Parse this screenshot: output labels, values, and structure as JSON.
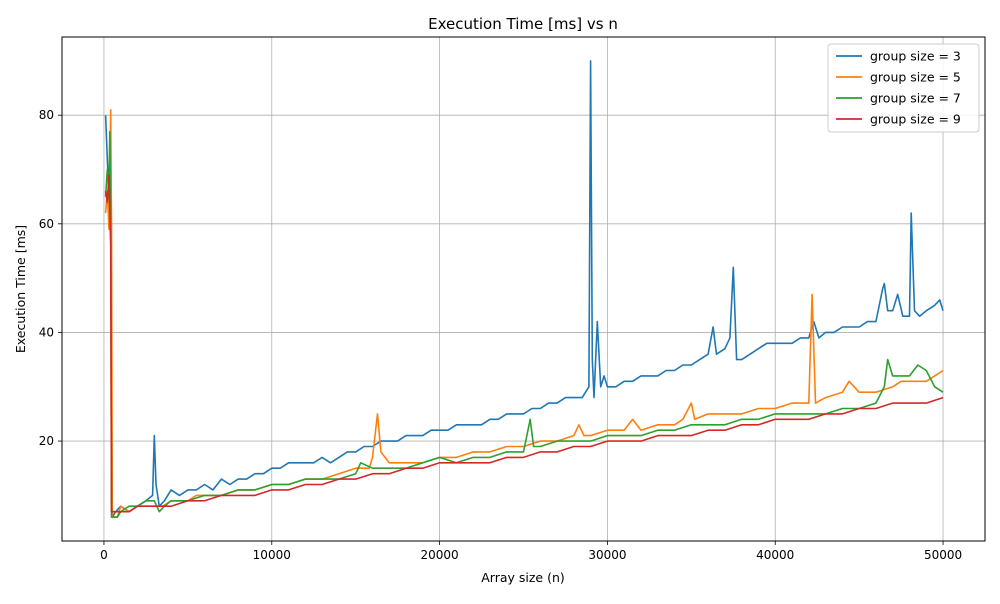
{
  "chart_data": {
    "type": "line",
    "title": "Execution Time [ms] vs n",
    "xlabel": "Array size (n)",
    "ylabel": "Execution Time [ms]",
    "xlim": [
      -2500,
      52500
    ],
    "ylim": [
      1.6,
      94.4
    ],
    "xticks": [
      0,
      10000,
      20000,
      30000,
      40000,
      50000
    ],
    "yticks": [
      20,
      40,
      60,
      80
    ],
    "grid": true,
    "legend_position": "top-right",
    "series": [
      {
        "name": "group size = 3",
        "color": "#1f77b4",
        "points": [
          [
            100,
            80
          ],
          [
            200,
            72
          ],
          [
            300,
            64
          ],
          [
            400,
            60
          ],
          [
            500,
            6
          ],
          [
            700,
            7
          ],
          [
            1000,
            8
          ],
          [
            1500,
            7
          ],
          [
            2000,
            8
          ],
          [
            2500,
            9
          ],
          [
            2900,
            10
          ],
          [
            3000,
            21
          ],
          [
            3100,
            12
          ],
          [
            3300,
            8
          ],
          [
            3600,
            9
          ],
          [
            4000,
            11
          ],
          [
            4500,
            10
          ],
          [
            5000,
            11
          ],
          [
            5500,
            11
          ],
          [
            6000,
            12
          ],
          [
            6500,
            11
          ],
          [
            7000,
            13
          ],
          [
            7500,
            12
          ],
          [
            8000,
            13
          ],
          [
            8500,
            13
          ],
          [
            9000,
            14
          ],
          [
            9500,
            14
          ],
          [
            10000,
            15
          ],
          [
            10500,
            15
          ],
          [
            11000,
            16
          ],
          [
            11500,
            16
          ],
          [
            12000,
            16
          ],
          [
            12500,
            16
          ],
          [
            13000,
            17
          ],
          [
            13500,
            16
          ],
          [
            14000,
            17
          ],
          [
            14500,
            18
          ],
          [
            15000,
            18
          ],
          [
            15500,
            19
          ],
          [
            16000,
            19
          ],
          [
            16500,
            20
          ],
          [
            17000,
            20
          ],
          [
            17500,
            20
          ],
          [
            18000,
            21
          ],
          [
            18500,
            21
          ],
          [
            19000,
            21
          ],
          [
            19500,
            22
          ],
          [
            20000,
            22
          ],
          [
            20500,
            22
          ],
          [
            21000,
            23
          ],
          [
            21500,
            23
          ],
          [
            22000,
            23
          ],
          [
            22500,
            23
          ],
          [
            23000,
            24
          ],
          [
            23500,
            24
          ],
          [
            24000,
            25
          ],
          [
            24500,
            25
          ],
          [
            25000,
            25
          ],
          [
            25500,
            26
          ],
          [
            26000,
            26
          ],
          [
            26500,
            27
          ],
          [
            27000,
            27
          ],
          [
            27500,
            28
          ],
          [
            28000,
            28
          ],
          [
            28500,
            28
          ],
          [
            28900,
            30
          ],
          [
            29000,
            90
          ],
          [
            29100,
            35
          ],
          [
            29200,
            28
          ],
          [
            29400,
            42
          ],
          [
            29600,
            30
          ],
          [
            29800,
            32
          ],
          [
            30000,
            30
          ],
          [
            30500,
            30
          ],
          [
            31000,
            31
          ],
          [
            31500,
            31
          ],
          [
            32000,
            32
          ],
          [
            32500,
            32
          ],
          [
            33000,
            32
          ],
          [
            33500,
            33
          ],
          [
            34000,
            33
          ],
          [
            34500,
            34
          ],
          [
            35000,
            34
          ],
          [
            35500,
            35
          ],
          [
            36000,
            36
          ],
          [
            36300,
            41
          ],
          [
            36500,
            36
          ],
          [
            37000,
            37
          ],
          [
            37300,
            39
          ],
          [
            37500,
            52
          ],
          [
            37700,
            35
          ],
          [
            38000,
            35
          ],
          [
            38500,
            36
          ],
          [
            39000,
            37
          ],
          [
            39500,
            38
          ],
          [
            40000,
            38
          ],
          [
            40500,
            38
          ],
          [
            41000,
            38
          ],
          [
            41500,
            39
          ],
          [
            42000,
            39
          ],
          [
            42300,
            42
          ],
          [
            42600,
            39
          ],
          [
            43000,
            40
          ],
          [
            43500,
            40
          ],
          [
            44000,
            41
          ],
          [
            44500,
            41
          ],
          [
            45000,
            41
          ],
          [
            45500,
            42
          ],
          [
            46000,
            42
          ],
          [
            46400,
            48
          ],
          [
            46500,
            49
          ],
          [
            46700,
            44
          ],
          [
            47000,
            44
          ],
          [
            47300,
            47
          ],
          [
            47600,
            43
          ],
          [
            48000,
            43
          ],
          [
            48100,
            62
          ],
          [
            48300,
            44
          ],
          [
            48600,
            43
          ],
          [
            49000,
            44
          ],
          [
            49500,
            45
          ],
          [
            49800,
            46
          ],
          [
            50000,
            44
          ]
        ]
      },
      {
        "name": "group size = 5",
        "color": "#ff7f0e",
        "points": [
          [
            100,
            62
          ],
          [
            200,
            66
          ],
          [
            300,
            59
          ],
          [
            400,
            81
          ],
          [
            450,
            60
          ],
          [
            500,
            6
          ],
          [
            800,
            6
          ],
          [
            1000,
            8
          ],
          [
            1500,
            7
          ],
          [
            2000,
            8
          ],
          [
            2500,
            8
          ],
          [
            3000,
            8
          ],
          [
            3500,
            8
          ],
          [
            4000,
            9
          ],
          [
            5000,
            9
          ],
          [
            5500,
            10
          ],
          [
            6000,
            10
          ],
          [
            7000,
            10
          ],
          [
            8000,
            11
          ],
          [
            9000,
            11
          ],
          [
            10000,
            12
          ],
          [
            11000,
            12
          ],
          [
            12000,
            13
          ],
          [
            13000,
            13
          ],
          [
            14000,
            14
          ],
          [
            15000,
            15
          ],
          [
            15800,
            15
          ],
          [
            16000,
            17
          ],
          [
            16300,
            25
          ],
          [
            16500,
            18
          ],
          [
            17000,
            16
          ],
          [
            18000,
            16
          ],
          [
            19000,
            16
          ],
          [
            20000,
            17
          ],
          [
            21000,
            17
          ],
          [
            22000,
            18
          ],
          [
            23000,
            18
          ],
          [
            24000,
            19
          ],
          [
            25000,
            19
          ],
          [
            26000,
            20
          ],
          [
            27000,
            20
          ],
          [
            28000,
            21
          ],
          [
            28300,
            23
          ],
          [
            28600,
            21
          ],
          [
            29000,
            21
          ],
          [
            30000,
            22
          ],
          [
            31000,
            22
          ],
          [
            31500,
            24
          ],
          [
            32000,
            22
          ],
          [
            33000,
            23
          ],
          [
            34000,
            23
          ],
          [
            34500,
            24
          ],
          [
            35000,
            27
          ],
          [
            35200,
            24
          ],
          [
            36000,
            25
          ],
          [
            37000,
            25
          ],
          [
            38000,
            25
          ],
          [
            39000,
            26
          ],
          [
            40000,
            26
          ],
          [
            41000,
            27
          ],
          [
            42000,
            27
          ],
          [
            42200,
            47
          ],
          [
            42400,
            27
          ],
          [
            43000,
            28
          ],
          [
            44000,
            29
          ],
          [
            44400,
            31
          ],
          [
            45000,
            29
          ],
          [
            46000,
            29
          ],
          [
            47000,
            30
          ],
          [
            47500,
            31
          ],
          [
            48000,
            31
          ],
          [
            49000,
            31
          ],
          [
            49500,
            32
          ],
          [
            50000,
            33
          ]
        ]
      },
      {
        "name": "group size = 7",
        "color": "#2ca02c",
        "points": [
          [
            100,
            65
          ],
          [
            200,
            70
          ],
          [
            300,
            66
          ],
          [
            350,
            77
          ],
          [
            400,
            62
          ],
          [
            450,
            6
          ],
          [
            800,
            6
          ],
          [
            1000,
            7
          ],
          [
            1500,
            8
          ],
          [
            2000,
            8
          ],
          [
            2500,
            9
          ],
          [
            3000,
            9
          ],
          [
            3300,
            7
          ],
          [
            3600,
            8
          ],
          [
            4000,
            9
          ],
          [
            5000,
            9
          ],
          [
            6000,
            10
          ],
          [
            7000,
            10
          ],
          [
            8000,
            11
          ],
          [
            9000,
            11
          ],
          [
            10000,
            12
          ],
          [
            11000,
            12
          ],
          [
            12000,
            13
          ],
          [
            13000,
            13
          ],
          [
            14000,
            13
          ],
          [
            15000,
            14
          ],
          [
            15300,
            16
          ],
          [
            16000,
            15
          ],
          [
            17000,
            15
          ],
          [
            18000,
            15
          ],
          [
            19000,
            16
          ],
          [
            20000,
            17
          ],
          [
            21000,
            16
          ],
          [
            22000,
            17
          ],
          [
            23000,
            17
          ],
          [
            24000,
            18
          ],
          [
            25000,
            18
          ],
          [
            25400,
            24
          ],
          [
            25600,
            19
          ],
          [
            26000,
            19
          ],
          [
            27000,
            20
          ],
          [
            28000,
            20
          ],
          [
            29000,
            20
          ],
          [
            30000,
            21
          ],
          [
            31000,
            21
          ],
          [
            32000,
            21
          ],
          [
            33000,
            22
          ],
          [
            34000,
            22
          ],
          [
            35000,
            23
          ],
          [
            36000,
            23
          ],
          [
            37000,
            23
          ],
          [
            38000,
            24
          ],
          [
            39000,
            24
          ],
          [
            40000,
            25
          ],
          [
            41000,
            25
          ],
          [
            42000,
            25
          ],
          [
            43000,
            25
          ],
          [
            44000,
            26
          ],
          [
            45000,
            26
          ],
          [
            46000,
            27
          ],
          [
            46500,
            30
          ],
          [
            46700,
            35
          ],
          [
            47000,
            32
          ],
          [
            48000,
            32
          ],
          [
            48500,
            34
          ],
          [
            49000,
            33
          ],
          [
            49500,
            30
          ],
          [
            50000,
            29
          ]
        ]
      },
      {
        "name": "group size = 9",
        "color": "#d62728",
        "points": [
          [
            100,
            66
          ],
          [
            200,
            64
          ],
          [
            300,
            69
          ],
          [
            400,
            56
          ],
          [
            450,
            7
          ],
          [
            800,
            7
          ],
          [
            1000,
            7
          ],
          [
            1500,
            7
          ],
          [
            2000,
            8
          ],
          [
            2500,
            8
          ],
          [
            3000,
            8
          ],
          [
            4000,
            8
          ],
          [
            5000,
            9
          ],
          [
            6000,
            9
          ],
          [
            7000,
            10
          ],
          [
            8000,
            10
          ],
          [
            9000,
            10
          ],
          [
            10000,
            11
          ],
          [
            11000,
            11
          ],
          [
            12000,
            12
          ],
          [
            13000,
            12
          ],
          [
            14000,
            13
          ],
          [
            15000,
            13
          ],
          [
            16000,
            14
          ],
          [
            17000,
            14
          ],
          [
            18000,
            15
          ],
          [
            19000,
            15
          ],
          [
            20000,
            16
          ],
          [
            21000,
            16
          ],
          [
            22000,
            16
          ],
          [
            23000,
            16
          ],
          [
            24000,
            17
          ],
          [
            25000,
            17
          ],
          [
            26000,
            18
          ],
          [
            27000,
            18
          ],
          [
            28000,
            19
          ],
          [
            29000,
            19
          ],
          [
            30000,
            20
          ],
          [
            31000,
            20
          ],
          [
            32000,
            20
          ],
          [
            33000,
            21
          ],
          [
            34000,
            21
          ],
          [
            35000,
            21
          ],
          [
            36000,
            22
          ],
          [
            37000,
            22
          ],
          [
            38000,
            23
          ],
          [
            39000,
            23
          ],
          [
            40000,
            24
          ],
          [
            41000,
            24
          ],
          [
            42000,
            24
          ],
          [
            43000,
            25
          ],
          [
            44000,
            25
          ],
          [
            45000,
            26
          ],
          [
            46000,
            26
          ],
          [
            47000,
            27
          ],
          [
            48000,
            27
          ],
          [
            49000,
            27
          ],
          [
            50000,
            28
          ]
        ]
      }
    ]
  }
}
